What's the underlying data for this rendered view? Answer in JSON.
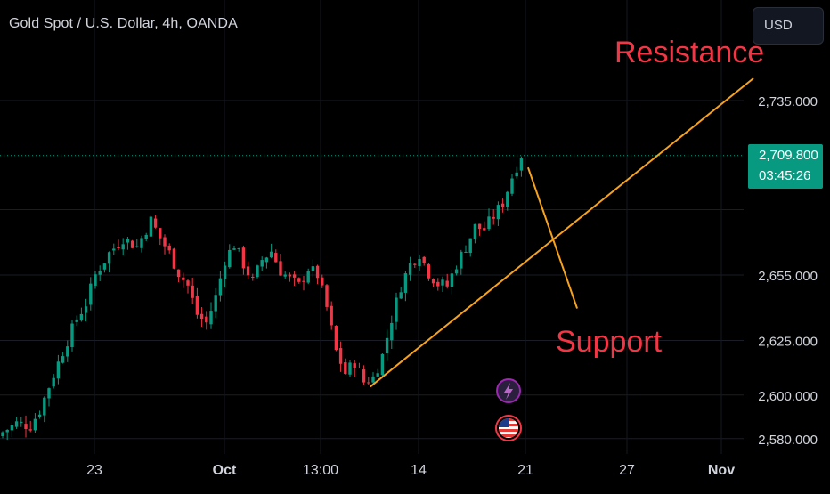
{
  "header": {
    "title": "Gold Spot / U.S. Dollar, 4h, OANDA"
  },
  "currency_button": {
    "label": "USD"
  },
  "last_price": {
    "price": "2,709.800",
    "countdown": "03:45:26"
  },
  "annotations": {
    "resistance": "Resistance",
    "support": "Support"
  },
  "colors": {
    "background": "#000000",
    "up_candle": "#089981",
    "down_candle": "#f23645",
    "trendline": "#f7a21b",
    "annotation_text": "#f23645",
    "axis_text": "#d1d4dc"
  },
  "chart_data": {
    "type": "candlestick",
    "symbol": "XAUUSD",
    "timeframe": "4h",
    "x_ticks": [
      "23",
      "Oct",
      "13:00",
      "14",
      "21",
      "27",
      "Nov"
    ],
    "y_ticks": [
      "2,735.000",
      "2,655.000",
      "2,625.000",
      "2,600.000",
      "2,580.000"
    ],
    "ylim": [
      2576,
      2775
    ],
    "last_price": 2709.8,
    "candles_close_path": [
      [
        0,
        2583
      ],
      [
        3,
        2587
      ],
      [
        6,
        2586
      ],
      [
        8,
        2593
      ],
      [
        10,
        2604
      ],
      [
        13,
        2620
      ],
      [
        16,
        2635
      ],
      [
        18,
        2642
      ],
      [
        20,
        2655
      ],
      [
        23,
        2665
      ],
      [
        26,
        2672
      ],
      [
        29,
        2668
      ],
      [
        32,
        2680
      ],
      [
        34,
        2672
      ],
      [
        36,
        2665
      ],
      [
        38,
        2656
      ],
      [
        40,
        2650
      ],
      [
        42,
        2637
      ],
      [
        44,
        2633
      ],
      [
        46,
        2645
      ],
      [
        48,
        2662
      ],
      [
        50,
        2669
      ],
      [
        52,
        2660
      ],
      [
        54,
        2652
      ],
      [
        56,
        2662
      ],
      [
        58,
        2666
      ],
      [
        60,
        2657
      ],
      [
        62,
        2653
      ],
      [
        64,
        2650
      ],
      [
        66,
        2658
      ],
      [
        68,
        2655
      ],
      [
        70,
        2640
      ],
      [
        72,
        2620
      ],
      [
        74,
        2610
      ],
      [
        76,
        2615
      ],
      [
        78,
        2606
      ],
      [
        80,
        2608
      ],
      [
        82,
        2618
      ],
      [
        84,
        2635
      ],
      [
        86,
        2650
      ],
      [
        88,
        2660
      ],
      [
        90,
        2665
      ],
      [
        92,
        2656
      ],
      [
        94,
        2651
      ],
      [
        96,
        2650
      ],
      [
        98,
        2660
      ],
      [
        100,
        2668
      ],
      [
        102,
        2677
      ],
      [
        104,
        2676
      ],
      [
        106,
        2682
      ],
      [
        108,
        2688
      ],
      [
        110,
        2700
      ],
      [
        112,
        2710
      ]
    ],
    "trendlines": [
      {
        "label": "Support",
        "from": [
          79.5,
          2604
        ],
        "to": [
          162,
          2745
        ]
      },
      {
        "label": "",
        "from": [
          113.5,
          2704
        ],
        "to": [
          124,
          2640
        ]
      }
    ]
  }
}
